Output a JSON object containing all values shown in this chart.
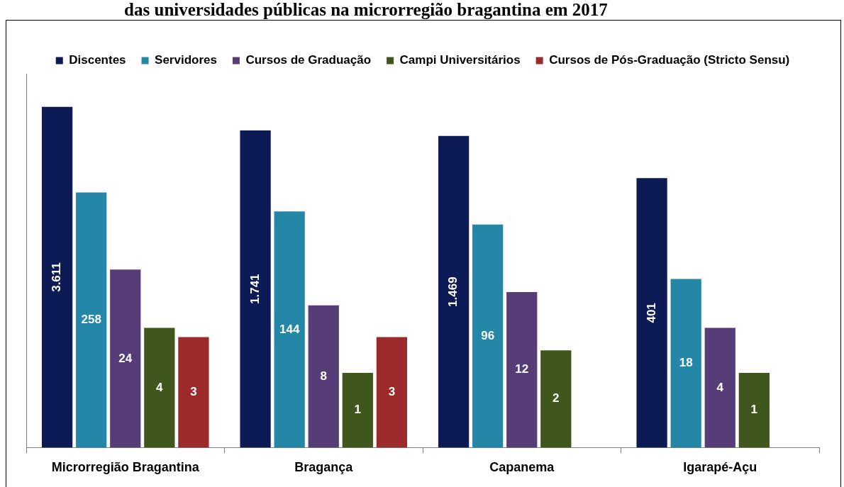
{
  "chart_data": {
    "type": "bar",
    "title": "das universidades públicas na microrregião bragantina em 2017",
    "categories": [
      "Microrregião Bragantina",
      "Bragança",
      "Capanema",
      "Igarapé-Açu"
    ],
    "series": [
      {
        "name": "Discentes",
        "color": "#0c1a55",
        "values": [
          3611,
          1741,
          1469,
          401
        ],
        "value_labels": [
          "3.611",
          "1.741",
          "1.469",
          "401"
        ]
      },
      {
        "name": "Servidores",
        "color": "#2487a7",
        "values": [
          258,
          144,
          96,
          18
        ],
        "value_labels": [
          "258",
          "144",
          "96",
          "18"
        ]
      },
      {
        "name": "Cursos de Graduação",
        "color": "#573d78",
        "values": [
          24,
          8,
          12,
          4
        ],
        "value_labels": [
          "24",
          "8",
          "12",
          "4"
        ]
      },
      {
        "name": "Campi Universitários",
        "color": "#3f561d",
        "values": [
          4,
          1,
          2,
          1
        ],
        "value_labels": [
          "4",
          "1",
          "2",
          "1"
        ]
      },
      {
        "name": "Cursos de Pós-Graduação (Stricto Sensu)",
        "color": "#9c2a2a",
        "values": [
          3,
          3,
          null,
          null
        ],
        "value_labels": [
          "3",
          "3",
          null,
          null
        ]
      }
    ],
    "log": true,
    "ylim": [
      0.1,
      10000
    ],
    "tick_labels": "x",
    "grid": false,
    "legend": "top"
  }
}
